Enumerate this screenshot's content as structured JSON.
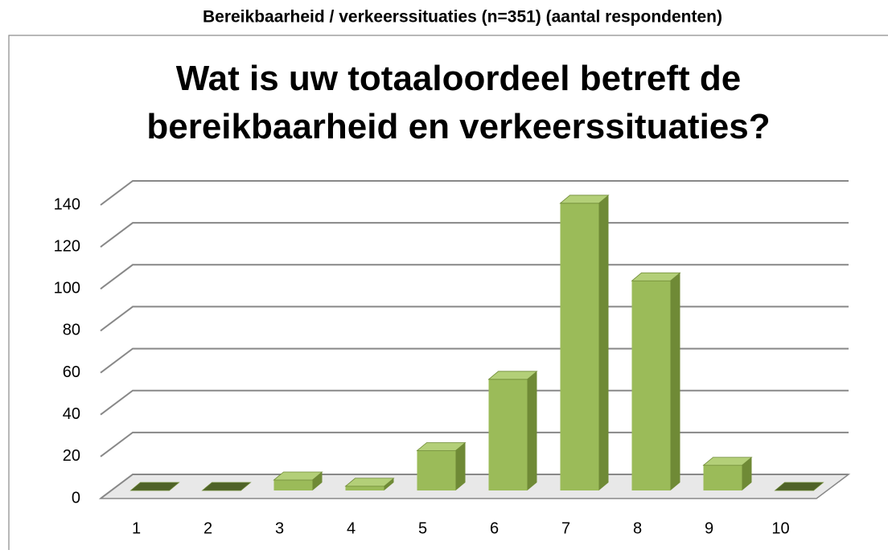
{
  "header": {
    "title": "Bereikbaarheid / verkeerssituaties (n=351) (aantal respondenten)"
  },
  "chart_data": {
    "type": "bar3d",
    "title": "Wat is uw totaaloordeel betreft de bereikbaarheid en verkeerssituaties?",
    "categories": [
      "1",
      "2",
      "3",
      "4",
      "5",
      "6",
      "7",
      "8",
      "9",
      "10"
    ],
    "values": [
      0,
      0,
      5,
      2,
      19,
      53,
      137,
      100,
      12,
      0
    ],
    "color": "#9bbb59",
    "ylim": [
      0,
      140
    ],
    "yticks": [
      0,
      20,
      40,
      60,
      80,
      100,
      120,
      140
    ],
    "grid": true
  }
}
